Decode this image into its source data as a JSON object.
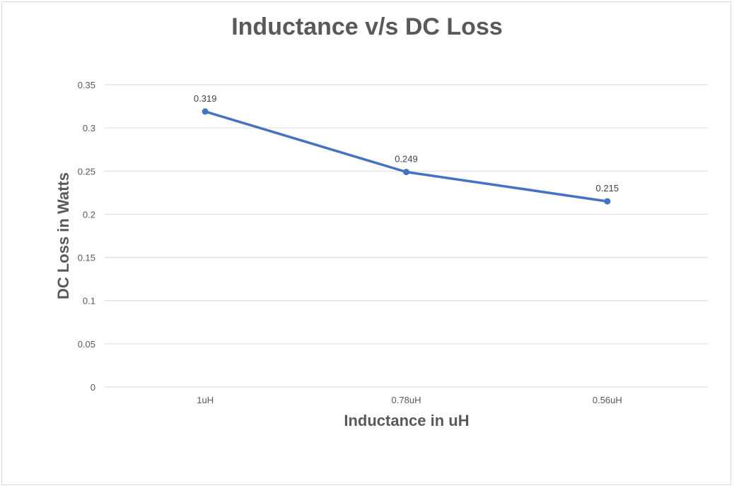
{
  "chart_data": {
    "type": "line",
    "title": "Inductance v/s DC Loss",
    "xlabel": "Inductance in uH",
    "ylabel": "DC Loss in Watts",
    "categories": [
      "1uH",
      "0.78uH",
      "0.56uH"
    ],
    "series": [
      {
        "name": "DC Loss",
        "values": [
          0.319,
          0.249,
          0.215
        ],
        "data_labels": [
          "0.319",
          "0.249",
          "0.215"
        ],
        "color": "#4472c4"
      }
    ],
    "ylim": [
      0,
      0.35
    ],
    "yticks": [
      0,
      0.05,
      0.1,
      0.15,
      0.2,
      0.25,
      0.3,
      0.35
    ],
    "ytick_labels": [
      "0",
      "0.05",
      "0.1",
      "0.15",
      "0.2",
      "0.25",
      "0.3",
      "0.35"
    ],
    "grid": true,
    "legend": "none"
  }
}
